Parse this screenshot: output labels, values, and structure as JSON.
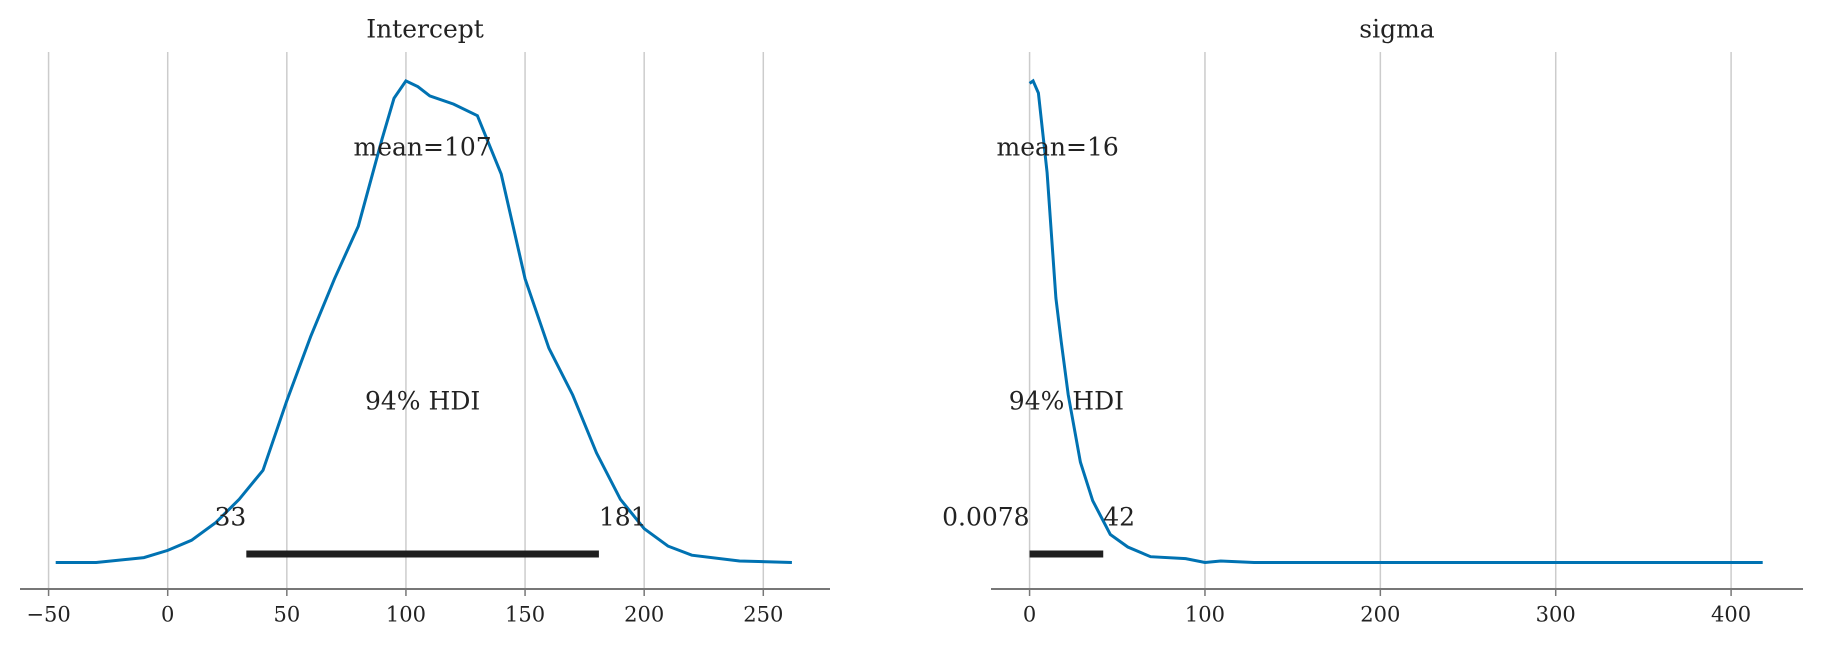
{
  "chart_data": [
    {
      "type": "density",
      "title": "Intercept",
      "x": [
        -47,
        -30,
        -10,
        0,
        10,
        20,
        30,
        40,
        50,
        60,
        70,
        80,
        90,
        95,
        100,
        105,
        110,
        120,
        130,
        140,
        150,
        160,
        170,
        180,
        190,
        200,
        210,
        220,
        240,
        262
      ],
      "values": [
        0.002,
        0.002,
        0.012,
        0.027,
        0.048,
        0.084,
        0.133,
        0.193,
        0.337,
        0.47,
        0.59,
        0.699,
        0.88,
        0.964,
        1.0,
        0.988,
        0.969,
        0.952,
        0.928,
        0.807,
        0.59,
        0.446,
        0.349,
        0.229,
        0.133,
        0.072,
        0.036,
        0.017,
        0.005,
        0.002
      ],
      "color": "#0072b2",
      "xlim": [
        -62,
        278
      ],
      "ylim": [
        -0.053,
        1.06
      ],
      "xticks": [
        {
          "value": -50,
          "label": "−50"
        },
        0,
        50,
        100,
        150,
        200,
        250
      ],
      "grid": true,
      "mean": {
        "value": 107,
        "label": "mean=107"
      },
      "hdi_label": "94% HDI",
      "hdi": [
        33,
        181
      ]
    },
    {
      "type": "density",
      "title": "sigma",
      "x": [
        0,
        2,
        5,
        10,
        15,
        18,
        22,
        29,
        36,
        46,
        56,
        69,
        89,
        100,
        109,
        128,
        170,
        418
      ],
      "values": [
        0.995,
        1.0,
        0.975,
        0.81,
        0.55,
        0.46,
        0.35,
        0.21,
        0.13,
        0.06,
        0.034,
        0.014,
        0.01,
        0.002,
        0.005,
        0.002,
        0.002,
        0.002
      ],
      "color": "#0072b2",
      "xlim": [
        -22,
        441
      ],
      "ylim": [
        -0.053,
        1.06
      ],
      "xticks": [
        0,
        100,
        200,
        300,
        400
      ],
      "grid": true,
      "mean": {
        "value": 16,
        "label": "mean=16"
      },
      "hdi_label": "94% HDI",
      "hdi": [
        0.0078,
        42
      ]
    }
  ]
}
